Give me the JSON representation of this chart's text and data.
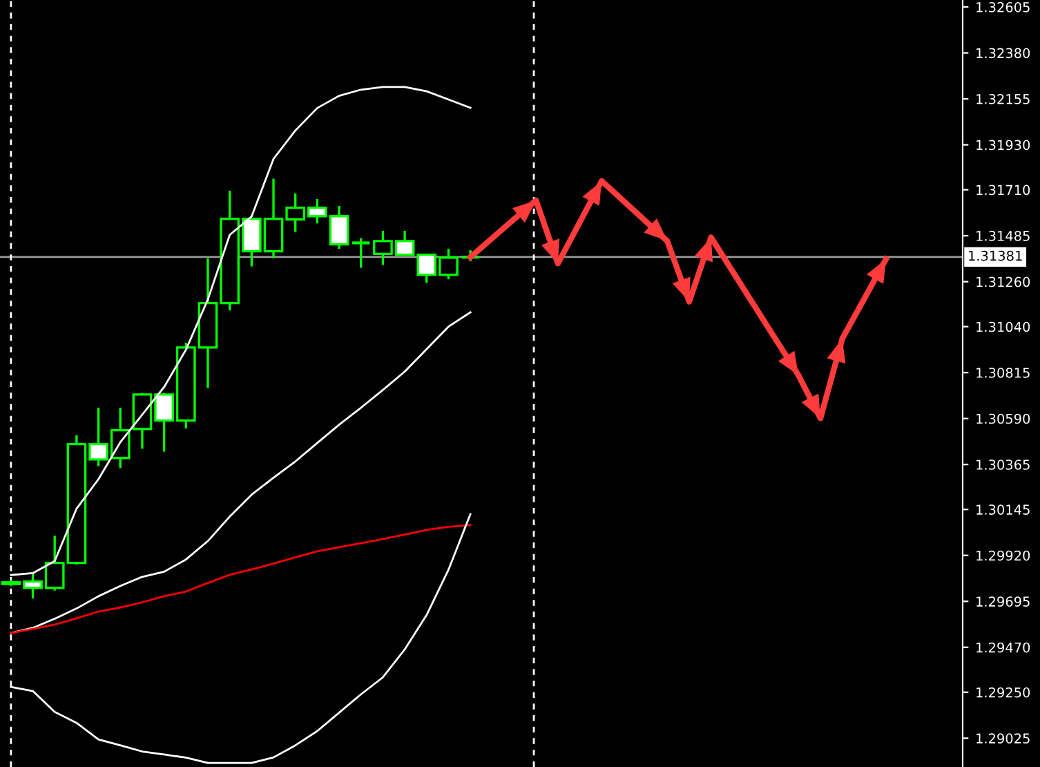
{
  "chart_data": {
    "type": "candlestick",
    "categories": [
      null,
      null,
      null,
      null,
      null,
      null,
      null,
      null,
      null,
      null,
      null,
      null,
      null,
      null,
      null,
      null,
      null,
      null,
      null,
      null,
      null,
      null,
      null,
      null,
      null,
      null,
      null,
      null,
      null,
      null,
      null,
      null,
      null,
      null,
      null,
      null,
      null,
      null,
      null,
      null,
      null,
      null,
      null,
      null
    ],
    "ohlc": [
      [
        1.2978,
        1.298,
        1.2977,
        1.29788
      ],
      [
        1.29792,
        1.29831,
        1.29709,
        1.29761
      ],
      [
        1.29761,
        1.30016,
        1.29748,
        1.29883
      ],
      [
        1.29883,
        1.30508,
        1.29875,
        1.30465
      ],
      [
        1.30465,
        1.30643,
        1.30357,
        1.3039
      ],
      [
        1.30397,
        1.30643,
        1.30347,
        1.30533
      ],
      [
        1.30539,
        1.30715,
        1.30442,
        1.30708
      ],
      [
        1.30708,
        1.30715,
        1.30428,
        1.3058
      ],
      [
        1.3058,
        1.30961,
        1.30541,
        1.30938
      ],
      [
        1.30938,
        1.31374,
        1.3074,
        1.31155
      ],
      [
        1.31155,
        1.31705,
        1.31119,
        1.31568
      ],
      [
        1.31568,
        1.31568,
        1.31335,
        1.31409
      ],
      [
        1.31409,
        1.31764,
        1.31376,
        1.31568
      ],
      [
        1.31565,
        1.31692,
        1.31504,
        1.31622
      ],
      [
        1.31622,
        1.31665,
        1.31545,
        1.31581
      ],
      [
        1.31581,
        1.31631,
        1.31421,
        1.31443
      ],
      [
        1.3145,
        1.31473,
        1.31328,
        1.3145
      ],
      [
        1.31396,
        1.31509,
        1.31342,
        1.31459
      ],
      [
        1.31459,
        1.31509,
        1.31392,
        1.31392
      ],
      [
        1.31392,
        1.31395,
        1.31254,
        1.31294
      ],
      [
        1.31294,
        1.31421,
        1.31272,
        1.31378
      ],
      [
        1.3138,
        1.31414,
        1.3136,
        1.31381
      ],
      null,
      null,
      null,
      null,
      null,
      null,
      null,
      null,
      null,
      null,
      null,
      null,
      null,
      null,
      null,
      null,
      null,
      null,
      null,
      null,
      null,
      null
    ],
    "color": "#00ff00",
    "colors": [
      "#000000",
      "#ffffff",
      "#000000",
      "#000000",
      "#ffffff",
      "#000000",
      "#000000",
      "#ffffff",
      "#000000",
      "#000000",
      "#000000",
      "#ffffff",
      "#000000",
      "#000000",
      "#ffffff",
      "#ffffff",
      "#00ff00",
      "#000000",
      "#ffffff",
      "#ffffff",
      "#000000",
      "#00ff00",
      null,
      null,
      null,
      null,
      null,
      null,
      null,
      null,
      null,
      null,
      null,
      null,
      null,
      null,
      null,
      null,
      null,
      null,
      null,
      null,
      null,
      null
    ],
    "series": [
      {
        "type": "line",
        "color": "#ffffff",
        "values": [
          1.29824,
          1.29833,
          1.29892,
          1.30149,
          1.30293,
          1.30474,
          1.30609,
          1.30744,
          1.30927,
          1.31173,
          1.31489,
          1.31579,
          1.31861,
          1.32,
          1.3211,
          1.3217,
          1.322,
          1.32213,
          1.32213,
          1.32192,
          1.32152,
          1.32111,
          null,
          null,
          null,
          null,
          null,
          null,
          null,
          null,
          null,
          null,
          null,
          null,
          null,
          null,
          null,
          null,
          null,
          null,
          null,
          null,
          null,
          null
        ]
      },
      {
        "type": "line",
        "color": "#ffffff",
        "values": [
          1.2954,
          1.29565,
          1.2961,
          1.2966,
          1.2972,
          1.2977,
          1.29815,
          1.2984,
          1.299,
          1.2999,
          1.3011,
          1.30217,
          1.303,
          1.3038,
          1.3047,
          1.3056,
          1.30643,
          1.3073,
          1.3082,
          1.3093,
          1.3104,
          1.3111,
          null,
          null,
          null,
          null,
          null,
          null,
          null,
          null,
          null,
          null,
          null,
          null,
          null,
          null,
          null,
          null,
          null,
          null,
          null,
          null,
          null,
          null
        ]
      },
      {
        "type": "line",
        "color": "#ff0000",
        "values": [
          1.2954,
          1.2956,
          1.29581,
          1.29612,
          1.29645,
          1.29665,
          1.2969,
          1.2972,
          1.29743,
          1.29785,
          1.29825,
          1.29851,
          1.2988,
          1.2991,
          1.2994,
          1.2996,
          1.2998,
          1.3,
          1.30022,
          1.30045,
          1.3006,
          1.30068,
          null,
          null,
          null,
          null,
          null,
          null,
          null,
          null,
          null,
          null,
          null,
          null,
          null,
          null,
          null,
          null,
          null,
          null,
          null,
          null,
          null,
          null
        ]
      },
      {
        "type": "line",
        "color": "#ffffff",
        "values": [
          1.29276,
          1.29256,
          1.29154,
          1.291,
          1.29019,
          1.2899,
          1.2896,
          1.28945,
          1.2893,
          1.28904,
          1.28904,
          1.28904,
          1.28931,
          1.2899,
          1.2906,
          1.2915,
          1.2924,
          1.29323,
          1.2946,
          1.29628,
          1.2985,
          1.30122,
          null,
          null,
          null,
          null,
          null,
          null,
          null,
          null,
          null,
          null,
          null,
          null,
          null,
          null,
          null,
          null,
          null,
          null,
          null,
          null,
          null,
          null
        ]
      },
      {
        "type": "line",
        "color": "#ff3b3b",
        "values": [
          null,
          null,
          null,
          null,
          null,
          null,
          null,
          null,
          null,
          null,
          null,
          null,
          null,
          null,
          null,
          null,
          null,
          null,
          null,
          null,
          null,
          1.3138,
          1.31473,
          1.31566,
          1.31658,
          1.31349,
          1.31551,
          1.31753,
          1.31655,
          1.31557,
          1.31459,
          1.31162,
          1.31477,
          1.31308,
          1.31139,
          1.3097,
          1.30801,
          1.30591,
          1.30981,
          1.31176,
          1.31371,
          null,
          null,
          null
        ]
      }
    ],
    "ylim": [
      1.28884,
      1.32639
    ],
    "yticks": [
      1.32605,
      {
        "value": 1.3238,
        "label": "1.32380"
      },
      1.32155,
      {
        "value": 1.3193,
        "label": "1.31930"
      },
      {
        "value": 1.3171,
        "label": "1.31710"
      },
      1.31485,
      {
        "value": 1.3126,
        "label": "1.31260"
      },
      {
        "value": 1.3104,
        "label": "1.31040"
      },
      1.30815,
      {
        "value": 1.3059,
        "label": "1.30590"
      },
      1.30365,
      1.30145,
      {
        "value": 1.2992,
        "label": "1.29920"
      },
      1.29695,
      {
        "value": 1.2947,
        "label": "1.29470"
      },
      {
        "value": 1.2925,
        "label": "1.29250"
      },
      1.29025
    ],
    "ref_lines": [
      {
        "axis": "y",
        "value": 1.31381,
        "label": "1.31381",
        "color": "#9a9a9a",
        "line_style": "solid"
      }
    ],
    "tick_labels": "y",
    "grid": false,
    "marker": "none",
    "line_style": "solid"
  }
}
